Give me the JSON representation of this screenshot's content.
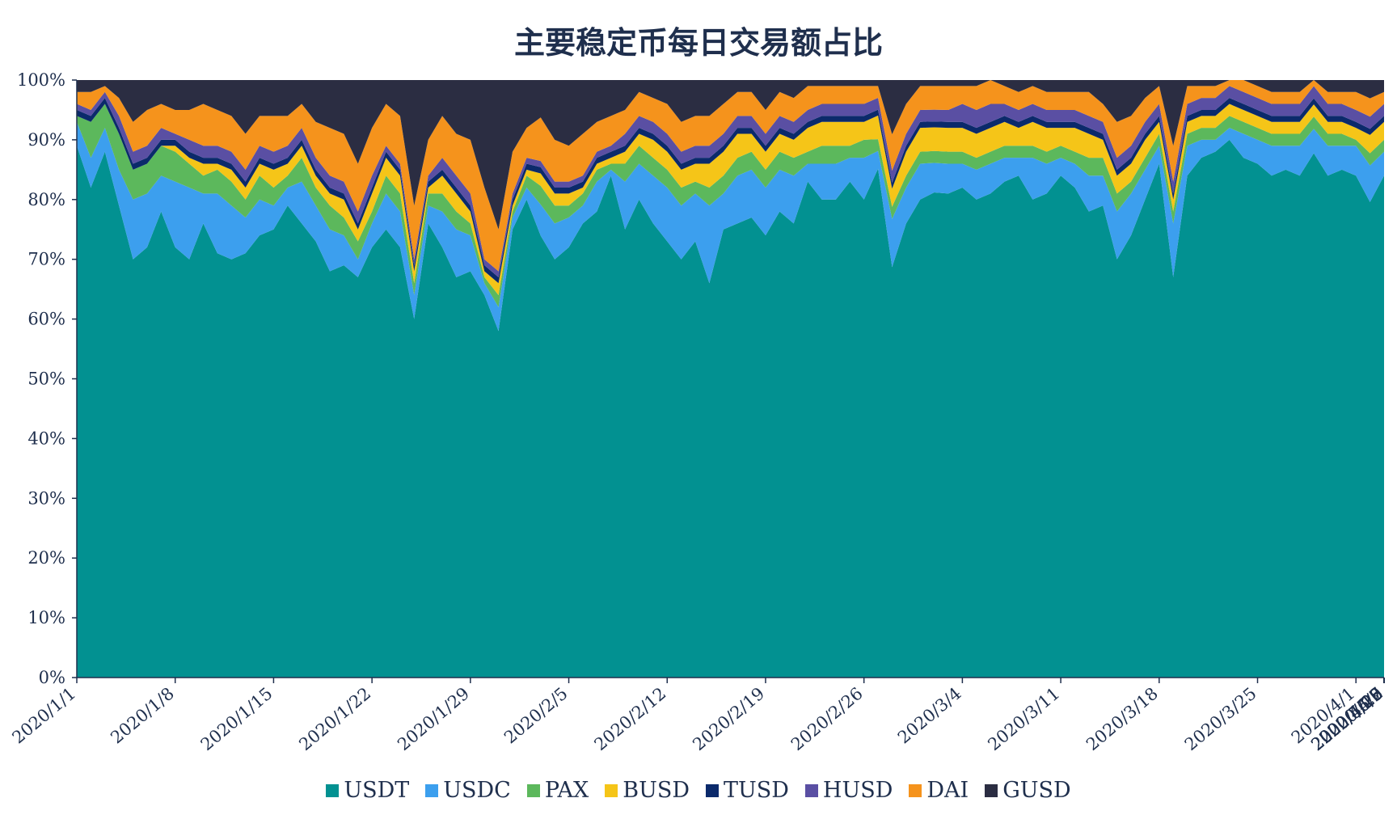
{
  "chart_data": {
    "type": "area",
    "title": "主要稳定币每日交易额占比",
    "stacked": true,
    "percent": true,
    "xlabel": "",
    "ylabel": "",
    "ylim": [
      0,
      100
    ],
    "y_ticks": [
      "0%",
      "10%",
      "20%",
      "30%",
      "40%",
      "50%",
      "60%",
      "70%",
      "80%",
      "90%",
      "100%"
    ],
    "x_ticks": [
      "2020/1/1",
      "2020/1/8",
      "2020/1/15",
      "2020/1/22",
      "2020/1/29",
      "2020/2/5",
      "2020/2/12",
      "2020/2/19",
      "2020/2/26",
      "2020/3/4",
      "2020/3/11",
      "2020/3/18",
      "2020/3/25",
      "2020/4/1",
      "2020/4/8",
      "2020/4/15",
      "2020/4/22",
      "2020/4/29",
      "2020/5/6",
      "2020/5/13",
      "2020/5/20",
      "2020/5/27",
      "2020/6/3"
    ],
    "legend_position": "bottom",
    "grid": false,
    "series": [
      {
        "name": "USDT",
        "color": "#029191",
        "values": [
          89,
          82,
          88,
          79,
          70,
          72,
          78,
          72,
          70,
          76,
          71,
          70,
          71,
          74,
          75,
          79,
          76,
          73,
          68,
          69,
          67,
          72,
          75,
          72,
          60,
          76,
          72,
          67,
          68,
          64,
          58,
          75,
          80,
          71,
          70,
          72,
          76,
          78,
          84,
          75,
          80,
          76,
          73,
          70,
          73,
          66,
          75,
          76,
          77,
          74,
          78,
          76,
          83,
          80,
          80,
          83,
          80,
          86,
          68,
          76,
          80,
          82,
          81,
          82,
          80,
          81,
          83,
          84,
          80,
          81,
          84,
          82,
          78,
          79,
          70,
          74,
          80,
          86,
          67,
          84,
          87,
          88,
          90,
          87,
          86,
          84,
          85,
          84,
          86,
          84,
          85,
          84,
          78,
          84
        ]
      },
      {
        "name": "USDC",
        "color": "#3c9fee",
        "values": [
          4,
          5,
          4,
          6,
          10,
          9,
          6,
          11,
          12,
          5,
          10,
          9,
          6,
          6,
          4,
          3,
          7,
          6,
          7,
          5,
          3,
          4,
          6,
          6,
          4,
          3,
          6,
          8,
          6,
          2,
          4,
          2,
          2,
          5,
          6,
          5,
          3,
          5,
          1,
          8,
          6,
          8,
          9,
          9,
          8,
          13,
          6,
          8,
          8,
          8,
          7,
          8,
          3,
          6,
          6,
          4,
          7,
          3,
          8,
          6,
          6,
          5,
          5,
          4,
          5,
          5,
          4,
          3,
          7,
          5,
          3,
          4,
          6,
          5,
          8,
          7,
          5,
          3,
          9,
          5,
          3,
          2,
          2,
          4,
          4,
          5,
          4,
          5,
          4,
          5,
          4,
          5,
          6,
          4
        ]
      },
      {
        "name": "PAX",
        "color": "#5cb85c",
        "values": [
          1,
          6,
          4,
          6,
          5,
          5,
          5,
          5,
          4,
          3,
          4,
          4,
          3,
          4,
          3,
          2,
          4,
          3,
          4,
          3,
          3,
          2,
          3,
          3,
          2,
          2,
          3,
          3,
          2,
          1,
          2,
          1,
          2,
          3,
          3,
          2,
          2,
          2,
          1,
          3,
          3,
          3,
          3,
          3,
          2,
          3,
          3,
          3,
          3,
          3,
          3,
          3,
          2,
          3,
          3,
          2,
          3,
          2,
          2,
          2,
          2,
          2,
          2,
          2,
          2,
          2,
          2,
          2,
          2,
          2,
          2,
          2,
          3,
          3,
          3,
          2,
          2,
          2,
          2,
          2,
          2,
          2,
          2,
          2,
          2,
          2,
          2,
          2,
          2,
          2,
          2,
          1,
          2,
          2
        ]
      },
      {
        "name": "BUSD",
        "color": "#f5c518",
        "values": [
          0,
          0,
          0,
          0,
          0,
          0,
          0,
          1,
          1,
          2,
          1,
          2,
          2,
          2,
          3,
          2,
          2,
          2,
          2,
          3,
          2,
          3,
          3,
          3,
          2,
          1,
          3,
          3,
          2,
          1,
          2,
          1,
          1,
          2,
          2,
          2,
          1,
          1,
          1,
          2,
          2,
          3,
          3,
          3,
          3,
          4,
          4,
          4,
          3,
          3,
          3,
          3,
          4,
          4,
          4,
          4,
          3,
          4,
          3,
          4,
          4,
          4,
          4,
          4,
          4,
          4,
          4,
          3,
          4,
          4,
          3,
          4,
          4,
          3,
          3,
          3,
          3,
          2,
          2,
          2,
          2,
          2,
          2,
          2,
          2,
          2,
          2,
          2,
          2,
          2,
          2,
          2,
          3,
          3
        ]
      },
      {
        "name": "TUSD",
        "color": "#0b2a6b",
        "values": [
          1,
          1,
          1,
          1,
          1,
          1,
          1,
          1,
          1,
          1,
          1,
          1,
          1,
          1,
          1,
          1,
          1,
          1,
          1,
          1,
          1,
          1,
          1,
          1,
          1,
          1,
          1,
          1,
          1,
          1,
          1,
          1,
          1,
          1,
          1,
          1,
          1,
          1,
          1,
          1,
          1,
          1,
          1,
          1,
          1,
          1,
          1,
          1,
          1,
          1,
          1,
          1,
          1,
          1,
          1,
          1,
          1,
          1,
          1,
          1,
          1,
          1,
          1,
          1,
          1,
          1,
          1,
          1,
          1,
          1,
          1,
          1,
          1,
          1,
          1,
          1,
          1,
          1,
          1,
          1,
          1,
          1,
          1,
          1,
          1,
          1,
          1,
          1,
          1,
          1,
          1,
          1,
          1,
          1
        ]
      },
      {
        "name": "HUSD",
        "color": "#5a4fa3",
        "values": [
          1,
          1,
          1,
          2,
          2,
          2,
          2,
          1,
          2,
          2,
          2,
          2,
          2,
          2,
          2,
          2,
          2,
          2,
          2,
          2,
          2,
          2,
          1,
          1,
          1,
          1,
          2,
          2,
          2,
          1,
          1,
          1,
          1,
          1,
          1,
          1,
          1,
          1,
          1,
          2,
          2,
          2,
          2,
          2,
          2,
          2,
          2,
          2,
          2,
          2,
          2,
          2,
          2,
          2,
          2,
          2,
          2,
          2,
          2,
          2,
          2,
          2,
          2,
          3,
          3,
          3,
          2,
          2,
          2,
          2,
          2,
          2,
          2,
          2,
          2,
          2,
          2,
          2,
          2,
          2,
          2,
          2,
          2,
          2,
          2,
          2,
          2,
          2,
          2,
          2,
          2,
          2,
          2,
          2
        ]
      },
      {
        "name": "DAI",
        "color": "#f5931c",
        "values": [
          2,
          3,
          1,
          3,
          5,
          6,
          4,
          4,
          5,
          7,
          6,
          6,
          6,
          5,
          6,
          5,
          4,
          6,
          8,
          8,
          8,
          8,
          7,
          8,
          9,
          6,
          7,
          7,
          9,
          12,
          7,
          7,
          5,
          7,
          7,
          6,
          7,
          5,
          5,
          4,
          4,
          4,
          5,
          5,
          5,
          5,
          5,
          4,
          4,
          4,
          4,
          4,
          4,
          3,
          3,
          3,
          3,
          2,
          6,
          5,
          4,
          4,
          4,
          3,
          4,
          4,
          3,
          3,
          3,
          3,
          3,
          3,
          4,
          3,
          6,
          5,
          4,
          3,
          6,
          3,
          2,
          2,
          1,
          2,
          2,
          2,
          2,
          2,
          1,
          2,
          2,
          3,
          3,
          2
        ]
      },
      {
        "name": "GUSD",
        "color": "#2b2d42",
        "values": [
          2,
          2,
          1,
          3,
          7,
          5,
          4,
          5,
          5,
          4,
          5,
          6,
          9,
          6,
          6,
          6,
          4,
          7,
          8,
          9,
          14,
          8,
          4,
          6,
          21,
          10,
          6,
          9,
          10,
          18,
          25,
          12,
          8,
          6,
          10,
          11,
          9,
          7,
          6,
          5,
          2,
          3,
          4,
          7,
          6,
          6,
          4,
          2,
          2,
          5,
          2,
          3,
          1,
          1,
          1,
          1,
          1,
          1,
          9,
          4,
          1,
          1,
          1,
          1,
          1,
          0,
          1,
          2,
          1,
          2,
          2,
          2,
          2,
          4,
          7,
          6,
          3,
          1,
          11,
          1,
          1,
          1,
          0,
          0,
          1,
          2,
          2,
          2,
          0,
          2,
          2,
          2,
          3,
          2
        ]
      }
    ]
  }
}
